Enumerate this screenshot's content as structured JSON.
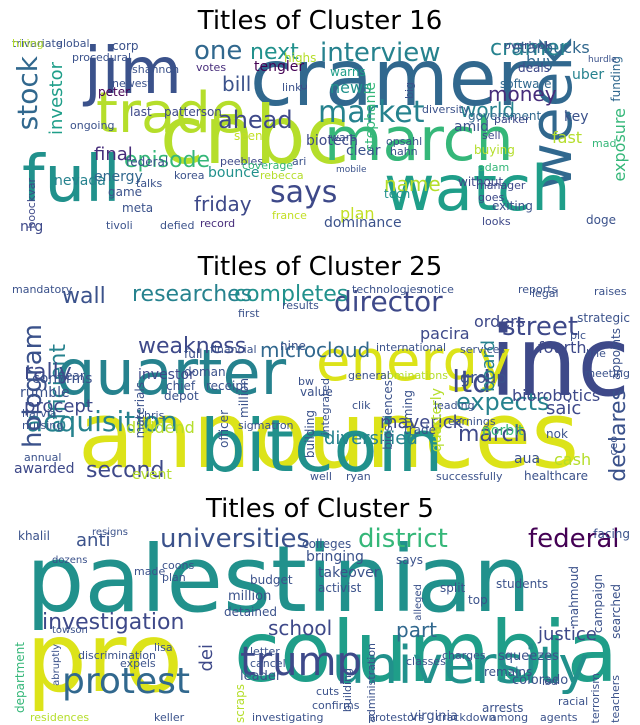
{
  "panels": [
    {
      "title": "Titles of Cluster 16",
      "words": [
        {
          "t": "jim",
          "c": "#3b528b"
        },
        {
          "t": "cramer",
          "c": "#31688e"
        },
        {
          "t": "cnbc",
          "c": "#b5de2b"
        },
        {
          "t": "trade",
          "c": "#b5de2b"
        },
        {
          "t": "march",
          "c": "#35b779"
        },
        {
          "t": "week",
          "c": "#31688e"
        },
        {
          "t": "full",
          "c": "#21918c"
        },
        {
          "t": "watch",
          "c": "#1f9e89"
        },
        {
          "t": "stock",
          "c": "#31688e"
        },
        {
          "t": "says",
          "c": "#3e4989"
        },
        {
          "t": "interview",
          "c": "#26828e"
        },
        {
          "t": "market",
          "c": "#26828e"
        },
        {
          "t": "ahead",
          "c": "#3e4989"
        },
        {
          "t": "one",
          "c": "#31688e"
        },
        {
          "t": "next",
          "c": "#21918c"
        },
        {
          "t": "cramer",
          "c": "#26828e"
        },
        {
          "t": "investor",
          "c": "#1f9e89"
        },
        {
          "t": "episode",
          "c": "#35b779"
        },
        {
          "t": "friday",
          "c": "#3e4989"
        },
        {
          "t": "final",
          "c": "#472d7b"
        },
        {
          "t": "bill",
          "c": "#3b528b"
        },
        {
          "t": "name",
          "c": "#b5de2b"
        },
        {
          "t": "world",
          "c": "#26828e"
        },
        {
          "t": "money",
          "c": "#472d7b"
        },
        {
          "t": "starbucks",
          "c": "#31688e"
        },
        {
          "t": "buy",
          "c": "#31688e"
        },
        {
          "t": "exposure",
          "c": "#35b779"
        },
        {
          "t": "news",
          "c": "#21918c"
        },
        {
          "t": "bounce",
          "c": "#21918c"
        },
        {
          "t": "biotech",
          "c": "#3e4989"
        },
        {
          "t": "tengler",
          "c": "#440154"
        },
        {
          "t": "nevada",
          "c": "#26828e"
        },
        {
          "t": "energy",
          "c": "#31688e"
        },
        {
          "t": "dominance",
          "c": "#3b528b"
        },
        {
          "t": "record",
          "c": "#472d7b"
        },
        {
          "t": "france",
          "c": "#c2df23"
        },
        {
          "t": "clear",
          "c": "#3b528b"
        },
        {
          "t": "warns",
          "c": "#1f9e89"
        },
        {
          "t": "tech",
          "c": "#21918c"
        },
        {
          "t": "key",
          "c": "#3b528b"
        },
        {
          "t": "uber",
          "c": "#26828e"
        },
        {
          "t": "fast",
          "c": "#b5de2b"
        },
        {
          "t": "deals",
          "c": "#3e4989"
        },
        {
          "t": "software",
          "c": "#31688e"
        },
        {
          "t": "government",
          "c": "#31688e"
        },
        {
          "t": "funding",
          "c": "#31688e"
        },
        {
          "t": "votes",
          "c": "#472d7b"
        },
        {
          "t": "patterson",
          "c": "#3e4989"
        },
        {
          "t": "last",
          "c": "#3e4989"
        },
        {
          "t": "peter",
          "c": "#440154"
        },
        {
          "t": "talks",
          "c": "#3b528b"
        },
        {
          "t": "meta",
          "c": "#3b528b"
        },
        {
          "t": "game",
          "c": "#3b528b"
        },
        {
          "t": "korea",
          "c": "#3b528b"
        },
        {
          "t": "peebles",
          "c": "#3e4989"
        },
        {
          "t": "without",
          "c": "#3e4989"
        },
        {
          "t": "exiting",
          "c": "#3b528b"
        },
        {
          "t": "looks",
          "c": "#3e4989"
        },
        {
          "t": "sell",
          "c": "#3e4989"
        },
        {
          "t": "boockvar",
          "c": "#3e4989"
        },
        {
          "t": "nrg",
          "c": "#3e4989"
        },
        {
          "t": "corp",
          "c": "#3b528b"
        },
        {
          "t": "highs",
          "c": "#b5de2b"
        },
        {
          "t": "link",
          "c": "#3b528b"
        },
        {
          "t": "wars",
          "c": "#3b528b"
        },
        {
          "t": "diversity",
          "c": "#3b528b"
        },
        {
          "t": "parker",
          "c": "#3e4989"
        },
        {
          "t": "overlook",
          "c": "#3e4989"
        },
        {
          "t": "global",
          "c": "#3b528b"
        },
        {
          "t": "procedural",
          "c": "#3b528b"
        },
        {
          "t": "newest",
          "c": "#3b528b"
        },
        {
          "t": "ongoing",
          "c": "#3b528b"
        },
        {
          "t": "seen",
          "c": "#c2df23"
        },
        {
          "t": "mobile",
          "c": "#3b528b"
        },
        {
          "t": "hahn",
          "c": "#3b528b"
        },
        {
          "t": "opsahl",
          "c": "#3b528b"
        },
        {
          "t": "buying",
          "c": "#b5de2b"
        },
        {
          "t": "adam",
          "c": "#35b779"
        },
        {
          "t": "manager",
          "c": "#3e4989"
        },
        {
          "t": "goes",
          "c": "#3e4989"
        },
        {
          "t": "doge",
          "c": "#3b528b"
        },
        {
          "t": "tivoli",
          "c": "#3b528b"
        },
        {
          "t": "defied",
          "c": "#3b528b"
        },
        {
          "t": "federal",
          "c": "#3b528b"
        },
        {
          "t": "hurdle",
          "c": "#3b528b"
        },
        {
          "t": "mad",
          "c": "#35b779"
        },
        {
          "t": "shannon",
          "c": "#3b528b"
        },
        {
          "t": "amid",
          "c": "#3b528b"
        },
        {
          "t": "coverage",
          "c": "#35b779"
        },
        {
          "t": "rebecca",
          "c": "#b5de2b"
        },
        {
          "t": "ari",
          "c": "#3b528b"
        },
        {
          "t": "plan",
          "c": "#c2df23"
        },
        {
          "t": "big",
          "c": "#3b528b"
        },
        {
          "t": "c",
          "c": "#3e4989"
        },
        {
          "t": "stephanie",
          "c": "#35b779"
        },
        {
          "t": "trivariate",
          "c": "#3b528b"
        },
        {
          "t": "hiring",
          "c": "#b5de2b"
        }
      ]
    },
    {
      "title": "Titles of Cluster 25",
      "words": [
        {
          "t": "announces",
          "c": "#dce319"
        },
        {
          "t": "inc",
          "c": "#3e4989"
        },
        {
          "t": "quarter",
          "c": "#26828e"
        },
        {
          "t": "energy",
          "c": "#dce319"
        },
        {
          "t": "bitcoin",
          "c": "#21918c"
        },
        {
          "t": "director",
          "c": "#3e4989"
        },
        {
          "t": "acquisition",
          "c": "#26828e"
        },
        {
          "t": "hologram",
          "c": "#3b528b"
        },
        {
          "t": "researches",
          "c": "#26828e"
        },
        {
          "t": "completes",
          "c": "#21918c"
        },
        {
          "t": "wall",
          "c": "#3b528b"
        },
        {
          "t": "street",
          "c": "#3e4989"
        },
        {
          "t": "weakness",
          "c": "#3e4989"
        },
        {
          "t": "microcloud",
          "c": "#31688e"
        },
        {
          "t": "efficient",
          "c": "#26828e"
        },
        {
          "t": "rally",
          "c": "#3e4989"
        },
        {
          "t": "ltd",
          "c": "#3e4989"
        },
        {
          "t": "expects",
          "c": "#26828e"
        },
        {
          "t": "second",
          "c": "#3e4989"
        },
        {
          "t": "march",
          "c": "#3e4989"
        },
        {
          "t": "maverick",
          "c": "#3e4989"
        },
        {
          "t": "diversified",
          "c": "#26828e"
        },
        {
          "t": "board",
          "c": "#26828e"
        },
        {
          "t": "saic",
          "c": "#3e4989"
        },
        {
          "t": "cash",
          "c": "#b5de2b"
        },
        {
          "t": "declares",
          "c": "#3b528b"
        },
        {
          "t": "biorobotics",
          "c": "#3e4989"
        },
        {
          "t": "procept",
          "c": "#3e4989"
        },
        {
          "t": "dividend",
          "c": "#b5de2b"
        },
        {
          "t": "awarded",
          "c": "#3e4989"
        },
        {
          "t": "event",
          "c": "#b5de2b"
        },
        {
          "t": "confirms",
          "c": "#3b528b"
        },
        {
          "t": "rumble",
          "c": "#3b528b"
        },
        {
          "t": "group",
          "c": "#3b528b"
        },
        {
          "t": "quarterly",
          "c": "#b5de2b"
        },
        {
          "t": "orders",
          "c": "#3e4989"
        },
        {
          "t": "pacira",
          "c": "#3e4989"
        },
        {
          "t": "fourth",
          "c": "#3e4989"
        },
        {
          "t": "aua",
          "c": "#3b528b"
        },
        {
          "t": "norbit",
          "c": "#35b779"
        },
        {
          "t": "nok",
          "c": "#3b528b"
        },
        {
          "t": "healthcare",
          "c": "#3b528b"
        },
        {
          "t": "investor",
          "c": "#3e4989"
        },
        {
          "t": "year",
          "c": "#3b528b"
        },
        {
          "t": "full",
          "c": "#3b528b"
        },
        {
          "t": "doman",
          "c": "#3b528b"
        },
        {
          "t": "receipt",
          "c": "#3b528b"
        },
        {
          "t": "million",
          "c": "#3b528b"
        },
        {
          "t": "materials",
          "c": "#3b528b"
        },
        {
          "t": "building",
          "c": "#3b528b"
        },
        {
          "t": "timing",
          "c": "#3b528b"
        },
        {
          "t": "biosciences",
          "c": "#3b528b"
        },
        {
          "t": "integrated",
          "c": "#3b528b"
        },
        {
          "t": "earnings",
          "c": "#3b528b"
        },
        {
          "t": "clik",
          "c": "#3b528b"
        },
        {
          "t": "ryan",
          "c": "#3b528b"
        },
        {
          "t": "well",
          "c": "#3b528b"
        },
        {
          "t": "successfully",
          "c": "#3b528b"
        },
        {
          "t": "annual",
          "c": "#3b528b"
        },
        {
          "t": "nursing",
          "c": "#3b528b"
        },
        {
          "t": "harvia",
          "c": "#3b528b"
        },
        {
          "t": "chris",
          "c": "#3b528b"
        },
        {
          "t": "sigmatron",
          "c": "#3b528b"
        },
        {
          "t": "officer",
          "c": "#3b528b"
        },
        {
          "t": "chief",
          "c": "#3b528b"
        },
        {
          "t": "depot",
          "c": "#3b528b"
        },
        {
          "t": "value",
          "c": "#3b528b"
        },
        {
          "t": "bw",
          "c": "#3b528b"
        },
        {
          "t": "nine",
          "c": "#3b528b"
        },
        {
          "t": "trade",
          "c": "#3b528b"
        },
        {
          "t": "international",
          "c": "#3b528b"
        },
        {
          "t": "services",
          "c": "#3b528b"
        },
        {
          "t": "reports",
          "c": "#3b528b"
        },
        {
          "t": "raises",
          "c": "#3b528b"
        },
        {
          "t": "strategic",
          "c": "#3b528b"
        },
        {
          "t": "notice",
          "c": "#3b528b"
        },
        {
          "t": "technologies",
          "c": "#3b528b"
        },
        {
          "t": "first",
          "c": "#3b528b"
        },
        {
          "t": "results",
          "c": "#3b528b"
        },
        {
          "t": "plc",
          "c": "#3b528b"
        },
        {
          "t": "line",
          "c": "#3b528b"
        },
        {
          "t": "meeting",
          "c": "#3b528b"
        },
        {
          "t": "appoints",
          "c": "#3b528b"
        },
        {
          "t": "nominations",
          "c": "#b5de2b"
        },
        {
          "t": "leading",
          "c": "#3b528b"
        },
        {
          "t": "financial",
          "c": "#3b528b"
        },
        {
          "t": "general",
          "c": "#3b528b"
        },
        {
          "t": "legal",
          "c": "#3b528b"
        },
        {
          "t": "ceo",
          "c": "#3b528b"
        },
        {
          "t": "mandatory",
          "c": "#3b528b"
        }
      ]
    },
    {
      "title": "Titles of Cluster 5",
      "words": [
        {
          "t": "palestinian",
          "c": "#21918c"
        },
        {
          "t": "pro",
          "c": "#dce319"
        },
        {
          "t": "columbia",
          "c": "#1f9e89"
        },
        {
          "t": "university",
          "c": "#21918c"
        },
        {
          "t": "trump",
          "c": "#3e4989"
        },
        {
          "t": "protest",
          "c": "#31688e"
        },
        {
          "t": "universities",
          "c": "#3b528b"
        },
        {
          "t": "district",
          "c": "#35b779"
        },
        {
          "t": "federal",
          "c": "#440154"
        },
        {
          "t": "investigation",
          "c": "#3e4989"
        },
        {
          "t": "anti",
          "c": "#3b528b"
        },
        {
          "t": "school",
          "c": "#3e4989"
        },
        {
          "t": "part",
          "c": "#31688e"
        },
        {
          "t": "justice",
          "c": "#3e4989"
        },
        {
          "t": "dei",
          "c": "#3e4989"
        },
        {
          "t": "students",
          "c": "#3b528b"
        },
        {
          "t": "top",
          "c": "#3b528b"
        },
        {
          "t": "mahmoud",
          "c": "#3b528b"
        },
        {
          "t": "campaign",
          "c": "#3b528b"
        },
        {
          "t": "searched",
          "c": "#3b528b"
        },
        {
          "t": "khalil",
          "c": "#3b528b"
        },
        {
          "t": "resigns",
          "c": "#3b528b"
        },
        {
          "t": "colleges",
          "c": "#3b528b"
        },
        {
          "t": "facing",
          "c": "#3b528b"
        },
        {
          "t": "bringing",
          "c": "#3b528b"
        },
        {
          "t": "takeover",
          "c": "#3b528b"
        },
        {
          "t": "activist",
          "c": "#3b528b"
        },
        {
          "t": "budget",
          "c": "#3b528b"
        },
        {
          "t": "says",
          "c": "#3b528b"
        },
        {
          "t": "split",
          "c": "#3b528b"
        },
        {
          "t": "alleged",
          "c": "#3b528b"
        },
        {
          "t": "dozens",
          "c": "#3b528b"
        },
        {
          "t": "made",
          "c": "#3b528b"
        },
        {
          "t": "coons",
          "c": "#3b528b"
        },
        {
          "t": "plan",
          "c": "#3b528b"
        },
        {
          "t": "detained",
          "c": "#3b528b"
        },
        {
          "t": "million",
          "c": "#3b528b"
        },
        {
          "t": "department",
          "c": "#35b779"
        },
        {
          "t": "towson",
          "c": "#3b528b"
        },
        {
          "t": "abruptly",
          "c": "#3b528b"
        },
        {
          "t": "discrimination",
          "c": "#3b528b"
        },
        {
          "t": "expels",
          "c": "#3b528b"
        },
        {
          "t": "lisa",
          "c": "#3b528b"
        },
        {
          "t": "leader",
          "c": "#3b528b"
        },
        {
          "t": "letter",
          "c": "#3b528b"
        },
        {
          "t": "cancel",
          "c": "#3b528b"
        },
        {
          "t": "scraps",
          "c": "#b5de2b"
        },
        {
          "t": "residences",
          "c": "#b5de2b"
        },
        {
          "t": "keller",
          "c": "#3b528b"
        },
        {
          "t": "investigating",
          "c": "#3b528b"
        },
        {
          "t": "confirms",
          "c": "#3b528b"
        },
        {
          "t": "cuts",
          "c": "#3b528b"
        },
        {
          "t": "building",
          "c": "#3b528b"
        },
        {
          "t": "administration",
          "c": "#3b528b"
        },
        {
          "t": "protestors",
          "c": "#3b528b"
        },
        {
          "t": "virginia",
          "c": "#3b528b"
        },
        {
          "t": "crackdown",
          "c": "#3b528b"
        },
        {
          "t": "arrests",
          "c": "#3b528b"
        },
        {
          "t": "among",
          "c": "#3b528b"
        },
        {
          "t": "agents",
          "c": "#3b528b"
        },
        {
          "t": "terrorism",
          "c": "#3b528b"
        },
        {
          "t": "racial",
          "c": "#3b528b"
        },
        {
          "t": "teachers",
          "c": "#3b528b"
        },
        {
          "t": "isd",
          "c": "#3b528b"
        },
        {
          "t": "colorado",
          "c": "#3b528b"
        },
        {
          "t": "remains",
          "c": "#3b528b"
        },
        {
          "t": "squeezes",
          "c": "#3b528b"
        },
        {
          "t": "charges",
          "c": "#3b528b"
        },
        {
          "t": "classes",
          "c": "#3b528b"
        }
      ]
    }
  ]
}
